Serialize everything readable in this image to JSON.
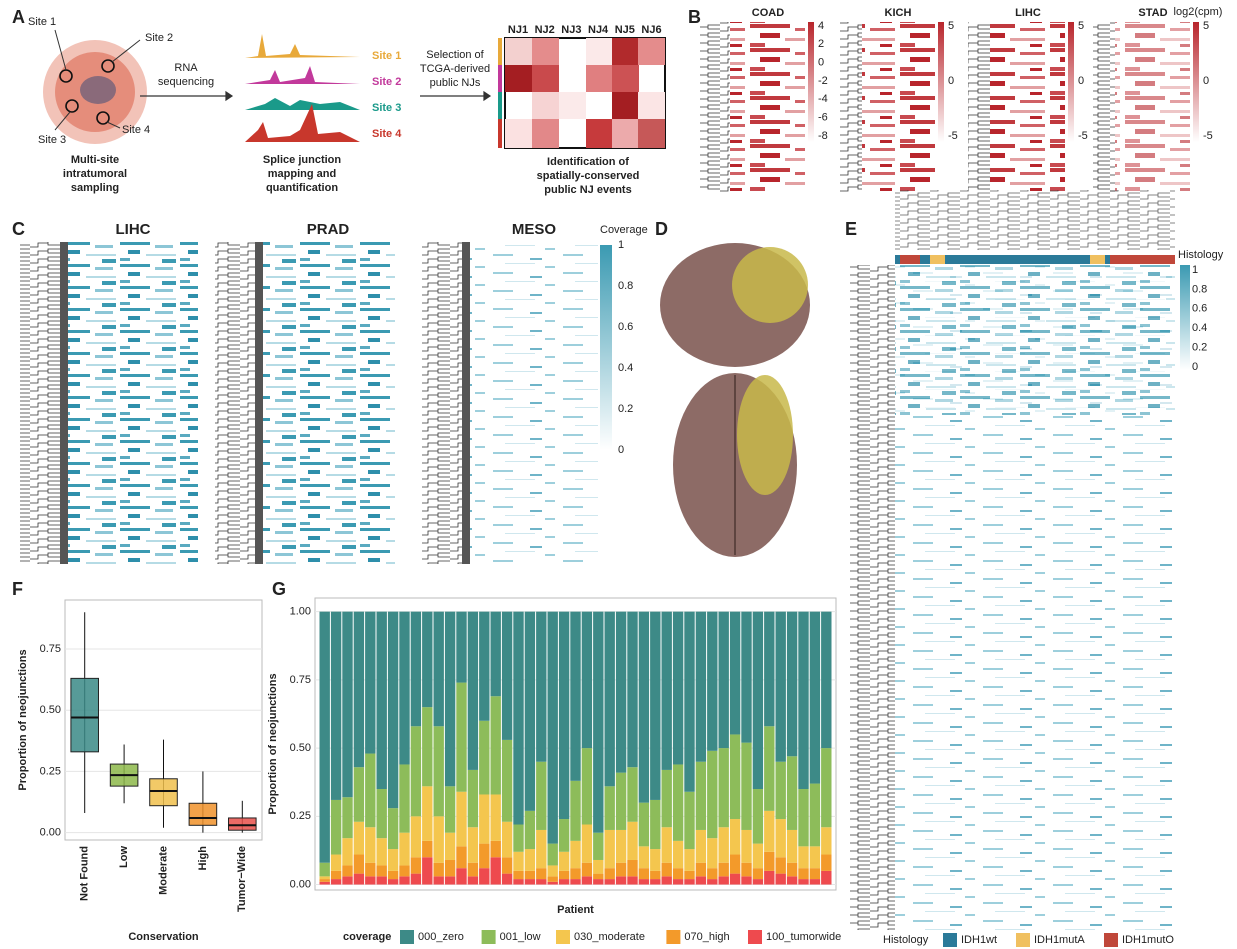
{
  "panel_labels": [
    "A",
    "B",
    "C",
    "D",
    "E",
    "F",
    "G"
  ],
  "panel_a": {
    "sites": [
      "Site 1",
      "Site 2",
      "Site 3",
      "Site 4"
    ],
    "sampling": [
      "Multi-site",
      "intratumoral",
      "sampling"
    ],
    "rna": [
      "RNA",
      "sequencing"
    ],
    "track_labels": [
      {
        "text": "Site 1",
        "color": "#e8a93a"
      },
      {
        "text": "Site 2",
        "color": "#c2399b"
      },
      {
        "text": "Site 3",
        "color": "#1a9a8a"
      },
      {
        "text": "Site 4",
        "color": "#c8372c"
      }
    ],
    "mapping": [
      "Splice junction",
      "mapping and",
      "quantification"
    ],
    "selection": [
      "Selection of",
      "TCGA-derived",
      "public NJs"
    ],
    "nj_labels": [
      "NJ1",
      "NJ2",
      "NJ3",
      "NJ4",
      "NJ5",
      "NJ6"
    ],
    "identification": [
      "Identification of",
      "spatially-conserved",
      "public NJ events"
    ]
  },
  "panel_b": {
    "titles": [
      "COAD",
      "KICH",
      "LIHC",
      "STAD"
    ],
    "colorbar_title": "log2(cpm)",
    "colorbar_ticks": [
      [
        4,
        2,
        0,
        -2,
        -4,
        -6,
        -8
      ],
      [
        5,
        0,
        -5
      ],
      [
        5,
        0,
        -5
      ],
      [
        5,
        0,
        -5
      ]
    ]
  },
  "panel_c": {
    "titles": [
      "LIHC",
      "PRAD",
      "MESO"
    ],
    "colorbar_title": "Coverage",
    "colorbar_ticks": [
      1,
      0.8,
      0.6,
      0.4,
      0.2,
      0
    ]
  },
  "panel_e": {
    "colorbar_title": "Histology",
    "colorbar_ticks": [
      1,
      0.8,
      0.6,
      0.4,
      0.2,
      0
    ],
    "legend_title": "Histology",
    "legend": [
      {
        "name": "IDH1wt",
        "color": "#2b7a99"
      },
      {
        "name": "IDH1mutA",
        "color": "#f0c060"
      },
      {
        "name": "IDH1mutO",
        "color": "#c0473a"
      }
    ]
  },
  "chart_data": [
    {
      "type": "box",
      "categories": [
        "Not Found",
        "Low",
        "Moderate",
        "High",
        "Tumor−Wide"
      ],
      "colors": [
        "#3a8a86",
        "#8db84a",
        "#f0c04c",
        "#f0922a",
        "#e8504a"
      ],
      "boxes": [
        {
          "low": 0.08,
          "q1": 0.33,
          "median": 0.47,
          "q3": 0.63,
          "high": 0.9
        },
        {
          "low": 0.12,
          "q1": 0.19,
          "median": 0.235,
          "q3": 0.28,
          "high": 0.36
        },
        {
          "low": 0.02,
          "q1": 0.11,
          "median": 0.17,
          "q3": 0.22,
          "high": 0.38
        },
        {
          "low": 0,
          "q1": 0.03,
          "median": 0.06,
          "q3": 0.12,
          "high": 0.25
        },
        {
          "low": 0,
          "q1": 0.01,
          "median": 0.03,
          "q3": 0.06,
          "high": 0.13
        }
      ],
      "ylim": [
        -0.03,
        0.95
      ],
      "yticks": [
        {
          "value": 0,
          "label": "0.00"
        },
        {
          "value": 0.25,
          "label": "0.25"
        },
        {
          "value": 0.5,
          "label": "0.50"
        },
        {
          "value": 0.75,
          "label": "0.75"
        }
      ],
      "y_label": "Proportion of neojunctions",
      "x_label": "Conservation",
      "grid": true
    },
    {
      "type": "stacked_bar",
      "y_label": "Proportion of neojunctions",
      "x_label": "Patient",
      "legend_title": "coverage",
      "grid": true,
      "ylim": [
        -0.02,
        1.05
      ],
      "yticks": [
        {
          "value": 0,
          "label": "0.00"
        },
        {
          "value": 0.25,
          "label": "0.25"
        },
        {
          "value": 0.5,
          "label": "0.50"
        },
        {
          "value": 0.75,
          "label": "0.75"
        },
        {
          "value": 1,
          "label": "1.00"
        }
      ],
      "series": [
        {
          "name": "000_zero",
          "color": "#3d8a87",
          "values": [
            0.92,
            0.69,
            0.68,
            0.57,
            0.52,
            0.65,
            0.72,
            0.56,
            0.42,
            0.35,
            0.42,
            0.64,
            0.26,
            0.58,
            0.4,
            0.31,
            0.47,
            0.78,
            0.73,
            0.55,
            0.85,
            0.76,
            0.62,
            0.5,
            0.81,
            0.64,
            0.59,
            0.57,
            0.7,
            0.69,
            0.58,
            0.56,
            0.66,
            0.55,
            0.51,
            0.5,
            0.45,
            0.48,
            0.65,
            0.42,
            0.55,
            0.53,
            0.65,
            0.63,
            0.5
          ]
        },
        {
          "name": "001_low",
          "color": "#8dbc5a",
          "values": [
            0.05,
            0.2,
            0.15,
            0.2,
            0.27,
            0.18,
            0.15,
            0.25,
            0.33,
            0.29,
            0.33,
            0.17,
            0.4,
            0.21,
            0.27,
            0.36,
            0.3,
            0.1,
            0.14,
            0.25,
            0.08,
            0.12,
            0.22,
            0.28,
            0.1,
            0.16,
            0.21,
            0.2,
            0.16,
            0.18,
            0.21,
            0.28,
            0.21,
            0.25,
            0.32,
            0.29,
            0.31,
            0.32,
            0.2,
            0.31,
            0.21,
            0.27,
            0.21,
            0.23,
            0.29
          ]
        },
        {
          "name": "030_moderate",
          "color": "#f4c64e",
          "values": [
            0.01,
            0.06,
            0.1,
            0.12,
            0.13,
            0.1,
            0.08,
            0.12,
            0.15,
            0.2,
            0.17,
            0.1,
            0.2,
            0.13,
            0.18,
            0.17,
            0.13,
            0.07,
            0.08,
            0.14,
            0.04,
            0.07,
            0.1,
            0.14,
            0.05,
            0.14,
            0.12,
            0.14,
            0.08,
            0.08,
            0.13,
            0.1,
            0.08,
            0.12,
            0.11,
            0.13,
            0.13,
            0.12,
            0.09,
            0.15,
            0.14,
            0.12,
            0.08,
            0.08,
            0.1
          ]
        },
        {
          "name": "070_high",
          "color": "#f39a2a",
          "values": [
            0.01,
            0.03,
            0.04,
            0.07,
            0.05,
            0.04,
            0.03,
            0.04,
            0.06,
            0.06,
            0.05,
            0.06,
            0.08,
            0.05,
            0.09,
            0.06,
            0.06,
            0.03,
            0.03,
            0.04,
            0.02,
            0.03,
            0.04,
            0.05,
            0.02,
            0.04,
            0.05,
            0.06,
            0.04,
            0.03,
            0.05,
            0.04,
            0.03,
            0.05,
            0.04,
            0.05,
            0.07,
            0.05,
            0.04,
            0.07,
            0.06,
            0.05,
            0.04,
            0.04,
            0.06
          ]
        },
        {
          "name": "100_tumorwide",
          "color": "#ee4a4e",
          "values": [
            0.01,
            0.02,
            0.03,
            0.04,
            0.03,
            0.03,
            0.02,
            0.03,
            0.04,
            0.1,
            0.03,
            0.03,
            0.06,
            0.03,
            0.06,
            0.1,
            0.04,
            0.02,
            0.02,
            0.02,
            0.01,
            0.02,
            0.02,
            0.03,
            0.02,
            0.02,
            0.03,
            0.03,
            0.02,
            0.02,
            0.03,
            0.02,
            0.02,
            0.03,
            0.02,
            0.03,
            0.04,
            0.03,
            0.02,
            0.05,
            0.04,
            0.03,
            0.02,
            0.02,
            0.05
          ]
        }
      ]
    }
  ]
}
